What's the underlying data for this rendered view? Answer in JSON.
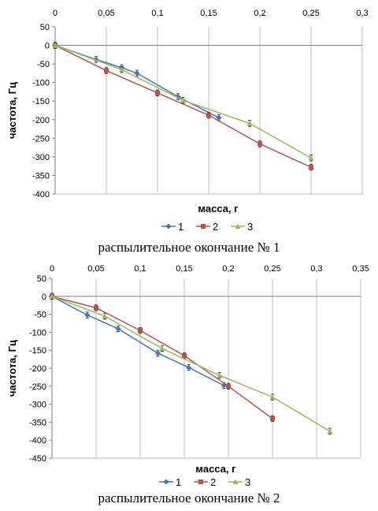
{
  "colors": {
    "1": "#4472C4",
    "2": "#C0504D",
    "3": "#9BBB59",
    "grid": "#bfbfbf",
    "axis": "#808080"
  },
  "chart_data": [
    {
      "type": "line",
      "caption": "распылительное окончание № 1",
      "xlabel": "масса, г",
      "ylabel": "частота, Гц",
      "xlim": [
        0,
        0.3
      ],
      "ylim": [
        -400,
        50
      ],
      "x_ticks": [
        0,
        0.05,
        0.1,
        0.15,
        0.2,
        0.25,
        0.3
      ],
      "x_tick_labels": [
        "0",
        "0,05",
        "0,1",
        "0,15",
        "0,2",
        "0,25",
        "0,3"
      ],
      "y_ticks": [
        50,
        0,
        -50,
        -100,
        -150,
        -200,
        -250,
        -300,
        -350,
        -400
      ],
      "y_tick_labels": [
        "50",
        "0",
        "-50",
        "-100",
        "-150",
        "-200",
        "-250",
        "-300",
        "-350",
        "-400"
      ],
      "x_axis_position": "top",
      "grid": "vertical",
      "legend_position": "bottom",
      "error_bars": 8,
      "series": [
        {
          "name": "1",
          "x": [
            0,
            0.04,
            0.065,
            0.08,
            0.12,
            0.16
          ],
          "y": [
            0,
            -38,
            -60,
            -75,
            -138,
            -195
          ]
        },
        {
          "name": "2",
          "x": [
            0,
            0.05,
            0.1,
            0.15,
            0.2,
            0.25
          ],
          "y": [
            0,
            -68,
            -128,
            -188,
            -265,
            -328
          ]
        },
        {
          "name": "3",
          "x": [
            0,
            0.065,
            0.125,
            0.19,
            0.25
          ],
          "y": [
            0,
            -65,
            -148,
            -210,
            -303
          ]
        }
      ]
    },
    {
      "type": "line",
      "caption": "распылительное окончание № 2",
      "xlabel": "масса, г",
      "ylabel": "частота, Гц",
      "xlim": [
        0,
        0.35
      ],
      "ylim": [
        -450,
        50
      ],
      "x_ticks": [
        0,
        0.05,
        0.1,
        0.15,
        0.2,
        0.25,
        0.3,
        0.35
      ],
      "x_tick_labels": [
        "0",
        "0,05",
        "0,1",
        "0,15",
        "0,2",
        "0,25",
        "0,3",
        "0,35"
      ],
      "y_ticks": [
        50,
        0,
        -50,
        -100,
        -150,
        -200,
        -250,
        -300,
        -350,
        -400,
        -450
      ],
      "y_tick_labels": [
        "50",
        "0",
        "-50",
        "-100",
        "-150",
        "-200",
        "-250",
        "-300",
        "-350",
        "-400",
        "-450"
      ],
      "x_axis_position": "top",
      "grid": "vertical",
      "legend_position": "bottom",
      "error_bars": 8,
      "series": [
        {
          "name": "1",
          "x": [
            0,
            0.04,
            0.075,
            0.12,
            0.155,
            0.195
          ],
          "y": [
            0,
            -52,
            -90,
            -158,
            -198,
            -248
          ]
        },
        {
          "name": "2",
          "x": [
            0,
            0.05,
            0.1,
            0.15,
            0.2,
            0.25
          ],
          "y": [
            0,
            -32,
            -95,
            -165,
            -250,
            -340
          ]
        },
        {
          "name": "3",
          "x": [
            0,
            0.06,
            0.125,
            0.19,
            0.25,
            0.315
          ],
          "y": [
            0,
            -55,
            -145,
            -220,
            -280,
            -375
          ]
        }
      ]
    }
  ]
}
